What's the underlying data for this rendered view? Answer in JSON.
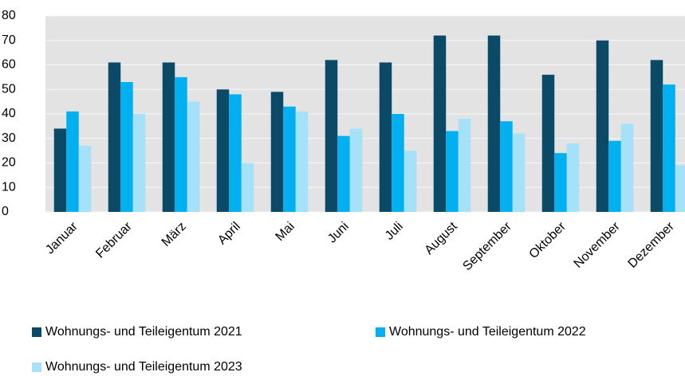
{
  "chart_data": {
    "type": "bar",
    "categories": [
      "Januar",
      "Februar",
      "März",
      "April",
      "Mai",
      "Juni",
      "Juli",
      "August",
      "September",
      "Oktober",
      "November",
      "Dezember"
    ],
    "series": [
      {
        "name": "Wohnungs- und Teileigentum 2021",
        "color": "#0b4a66",
        "values": [
          34,
          61,
          61,
          50,
          49,
          62,
          61,
          72,
          72,
          56,
          70,
          62
        ]
      },
      {
        "name": "Wohnungs- und Teileigentum 2022",
        "color": "#00b0f0",
        "values": [
          41,
          53,
          55,
          48,
          43,
          31,
          40,
          33,
          37,
          24,
          29,
          52
        ]
      },
      {
        "name": "Wohnungs- und Teileigentum 2023",
        "color": "#a6e1fa",
        "values": [
          27,
          40,
          45,
          20,
          41,
          34,
          25,
          38,
          32,
          28,
          36,
          19
        ]
      }
    ],
    "ylim": [
      0,
      80
    ],
    "yticks": [
      0,
      10,
      20,
      30,
      40,
      50,
      60,
      70,
      80
    ],
    "grid": true,
    "legend": "bottom"
  }
}
